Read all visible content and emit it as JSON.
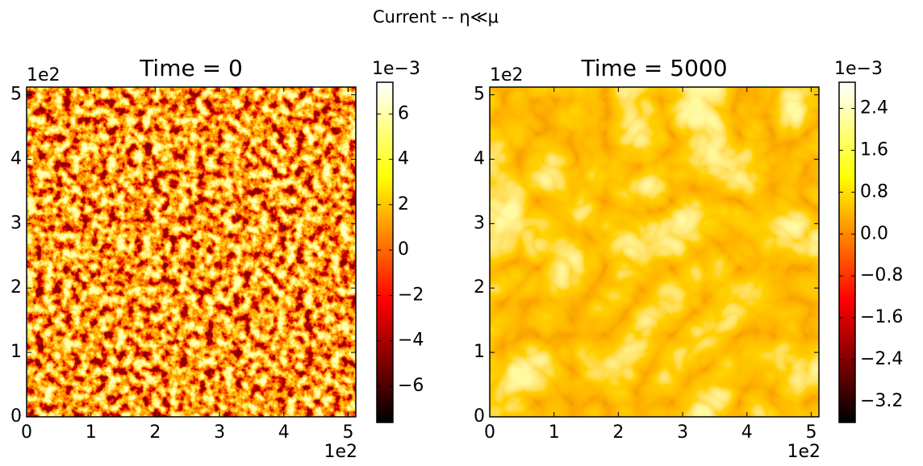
{
  "figure_title": "Current -- η≪μ",
  "chart_data": [
    {
      "type": "heatmap",
      "title": "Time = 0",
      "colormap": "hot",
      "xlim": [
        0,
        5.12
      ],
      "ylim": [
        0,
        5.12
      ],
      "xticks": [
        0,
        1,
        2,
        3,
        4,
        5
      ],
      "yticks": [
        0,
        1,
        2,
        3,
        4,
        5
      ],
      "x_offset_label": "1e2",
      "y_offset_label": "1e2",
      "colorbar": {
        "clim": [
          -7.6,
          7.4
        ],
        "offset_label": "1e−3",
        "ticks": [
          {
            "value": -6,
            "label": "−6"
          },
          {
            "value": -4,
            "label": "−4"
          },
          {
            "value": -2,
            "label": "−2"
          },
          0,
          2,
          4,
          6
        ]
      }
    },
    {
      "type": "heatmap",
      "title": "Time = 5000",
      "colormap": "hot",
      "xlim": [
        0,
        5.12
      ],
      "ylim": [
        0,
        5.12
      ],
      "xticks": [
        0,
        1,
        2,
        3,
        4,
        5
      ],
      "yticks": [
        0,
        1,
        2,
        3,
        4,
        5
      ],
      "x_offset_label": "1e2",
      "y_offset_label": "1e2",
      "colorbar": {
        "clim": [
          -3.6,
          2.9
        ],
        "offset_label": "1e−3",
        "ticks": [
          {
            "value": -3.2,
            "label": "−3.2"
          },
          {
            "value": -2.4,
            "label": "−2.4"
          },
          {
            "value": -1.6,
            "label": "−1.6"
          },
          {
            "value": -0.8,
            "label": "−0.8"
          },
          {
            "value": 0,
            "label": "0.0"
          },
          0.8,
          1.6,
          2.4
        ]
      }
    }
  ]
}
